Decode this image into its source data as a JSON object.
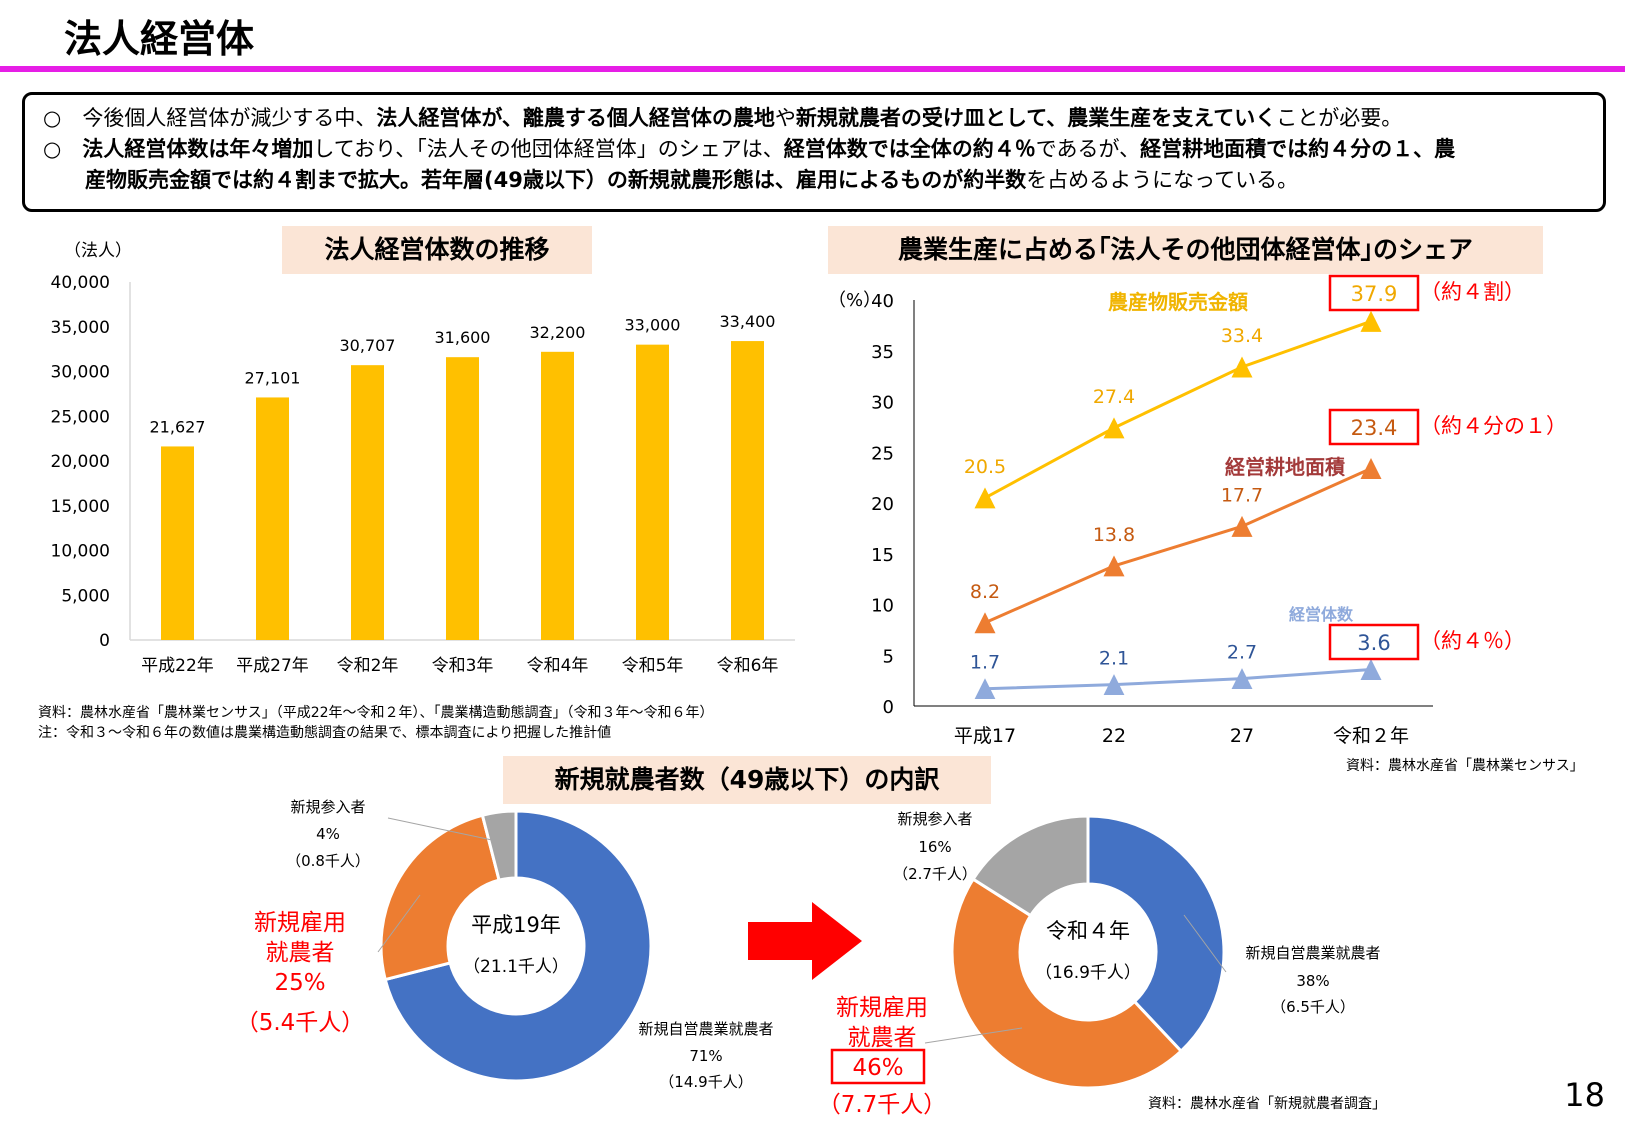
{
  "page": {
    "title": "法人経営体",
    "page_number": "18"
  },
  "summary": {
    "line1": [
      {
        "t": "○　今後個人経営体が減少する中、",
        "b": false
      },
      {
        "t": "法人経営体が、離農する個人経営体の農地",
        "b": true
      },
      {
        "t": "や",
        "b": false
      },
      {
        "t": "新規就農者の受け皿として、農業生産を支えていく",
        "b": true
      },
      {
        "t": "ことが必要。",
        "b": false
      }
    ],
    "line2": [
      {
        "t": "○　",
        "b": false
      },
      {
        "t": "法人経営体数は年々増加",
        "b": true
      },
      {
        "t": "しており、「法人その他団体経営体」のシェアは、",
        "b": false
      },
      {
        "t": "経営体数では全体の約４％",
        "b": true
      },
      {
        "t": "であるが、",
        "b": false
      },
      {
        "t": "経営耕地面積では約４分の１、農",
        "b": true
      }
    ],
    "line3": [
      {
        "t": "産物販売金額では約４割まで拡大。若年層(49歳以下）の新規就農形態は、雇用によるものが約半数",
        "b": true
      },
      {
        "t": "を占めるようになっている。",
        "b": false
      }
    ]
  },
  "panel_count": {
    "header": "法人経営体数の推移",
    "source1": "資料：農林水産省「農林業センサス」（平成22年～令和２年）、「農業構造動態調査」（令和３年～令和６年）",
    "source2": "注：令和３～令和６年の数値は農業構造動態調査の結果で、標本調査により把握した推計値"
  },
  "panel_share": {
    "header": "農業生産に占める｢法人その他団体経営体｣のシェア",
    "source": "資料：農林水産省「農林業センサス」",
    "callouts": [
      {
        "value": "37.9",
        "note": "（約４割）"
      },
      {
        "value": "23.4",
        "note": "（約４分の１）"
      },
      {
        "value": "3.6",
        "note": "（約４％）"
      }
    ]
  },
  "panel_new": {
    "header": "新規就農者数（49歳以下）の内訳",
    "source": "資料：農林水産省「新規就農者調査」"
  },
  "chart_data": [
    {
      "type": "bar",
      "ylabel": "（法人）",
      "categories": [
        "平成22年",
        "平成27年",
        "令和2年",
        "令和3年",
        "令和4年",
        "令和5年",
        "令和6年"
      ],
      "values": [
        21627,
        27101,
        30707,
        31600,
        32200,
        33000,
        33400
      ],
      "value_labels": [
        "21,627",
        "27,101",
        "30,707",
        "31,600",
        "32,200",
        "33,000",
        "33,400"
      ],
      "ylim": [
        0,
        40000
      ],
      "yticks": [
        "0",
        "5,000",
        "10,000",
        "15,000",
        "20,000",
        "25,000",
        "30,000",
        "35,000",
        "40,000"
      ],
      "color": "#ffc000"
    },
    {
      "type": "line",
      "ylabel": "（%）",
      "x": [
        "平成17",
        "22",
        "27",
        "令和２年"
      ],
      "ylim": [
        0,
        40
      ],
      "yticks": [
        "0",
        "5",
        "10",
        "15",
        "20",
        "25",
        "30",
        "35",
        "40"
      ],
      "series": [
        {
          "name": "農産物販売金額",
          "values": [
            20.5,
            27.4,
            33.4,
            37.9
          ],
          "labels": [
            "20.5",
            "27.4",
            "33.4",
            ""
          ],
          "color": "#ffc000",
          "label_color": "#f0a800"
        },
        {
          "name": "経営耕地面積",
          "values": [
            8.2,
            13.8,
            17.7,
            23.4
          ],
          "labels": [
            "8.2",
            "13.8",
            "17.7",
            ""
          ],
          "color": "#ed7d31",
          "label_color": "#c55a11"
        },
        {
          "name": "経営体数",
          "values": [
            1.7,
            2.1,
            2.7,
            3.6
          ],
          "labels": [
            "1.7",
            "2.1",
            "2.7",
            ""
          ],
          "color": "#8faadc",
          "label_color": "#2f5597"
        }
      ]
    },
    {
      "type": "pie",
      "title": "平成19年",
      "subtitle": "（21.1千人）",
      "slices": [
        {
          "name": "新規自営農業就農者",
          "pct": 71,
          "pct_label": "71%",
          "count": "（14.9千人）",
          "color": "#4472c4"
        },
        {
          "name": "新規雇用就農者",
          "pct": 25,
          "pct_label": "25%",
          "count": "（5.4千人）",
          "color": "#ed7d31"
        },
        {
          "name": "新規参入者",
          "pct": 4,
          "pct_label": "4%",
          "count": "（0.8千人）",
          "color": "#a5a5a5"
        }
      ]
    },
    {
      "type": "pie",
      "title": "令和４年",
      "subtitle": "（16.9千人）",
      "slices": [
        {
          "name": "新規自営農業就農者",
          "pct": 38,
          "pct_label": "38%",
          "count": "（6.5千人）",
          "color": "#4472c4"
        },
        {
          "name": "新規雇用就農者",
          "pct": 46,
          "pct_label": "46%",
          "count": "（7.7千人）",
          "color": "#ed7d31"
        },
        {
          "name": "新規参入者",
          "pct": 16,
          "pct_label": "16%",
          "count": "（2.7千人）",
          "color": "#a5a5a5"
        }
      ]
    }
  ]
}
